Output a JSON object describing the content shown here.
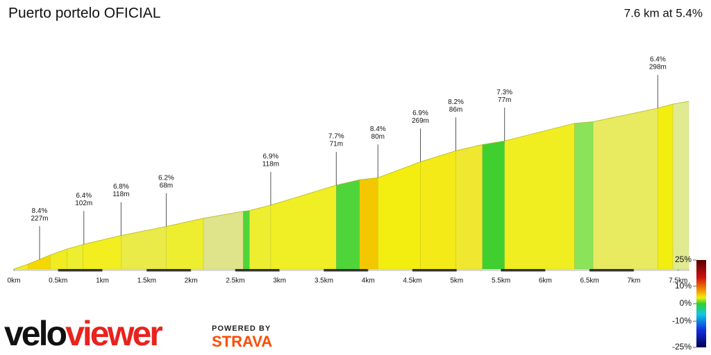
{
  "chart_data": {
    "type": "elevation-profile",
    "title": "Puerto portelo OFICIAL",
    "summary": "7.6 km at 5.4%",
    "x": [
      0,
      0.16,
      0.41,
      0.6,
      0.78,
      1.21,
      1.72,
      2.14,
      2.59,
      2.66,
      2.9,
      3.64,
      3.9,
      4.11,
      4.59,
      4.99,
      5.29,
      5.54,
      6.33,
      6.54,
      7.27,
      7.44,
      7.62
    ],
    "elevation": [
      0,
      12,
      34,
      49,
      60,
      82,
      104,
      124,
      141,
      143,
      156,
      205,
      218,
      223,
      262,
      289,
      304,
      313,
      356,
      360,
      393,
      403,
      410
    ],
    "segment_colors": [
      "#f2ee1e",
      "#f5d800",
      "#f0ec20",
      "#eeee30",
      "#f2ee20",
      "#eaea48",
      "#eeee30",
      "#dfe48a",
      "#4fd53a",
      "#eeee30",
      "#f0ee24",
      "#4fd53a",
      "#f3c800",
      "#f3ee10",
      "#f3ea18",
      "#f0e830",
      "#3fd030",
      "#f0ee20",
      "#8be35a",
      "#e8ea60",
      "#f2ee10",
      "#e0ea90"
    ],
    "xlim": [
      0,
      7.62
    ],
    "ylim": [
      0,
      410
    ],
    "xticks": [
      {
        "value": 0,
        "label": "0km"
      },
      {
        "value": 0.5,
        "label": "0.5km"
      },
      {
        "value": 1,
        "label": "1km"
      },
      {
        "value": 1.5,
        "label": "1.5km"
      },
      {
        "value": 2,
        "label": "2km"
      },
      {
        "value": 2.5,
        "label": "2.5km"
      },
      {
        "value": 3,
        "label": "3km"
      },
      {
        "value": 3.5,
        "label": "3.5km"
      },
      {
        "value": 4,
        "label": "4km"
      },
      {
        "value": 4.5,
        "label": "4.5km"
      },
      {
        "value": 5,
        "label": "5km"
      },
      {
        "value": 5.5,
        "label": "5.5km"
      },
      {
        "value": 6,
        "label": "6km"
      },
      {
        "value": 6.5,
        "label": "6.5km"
      },
      {
        "value": 7,
        "label": "7km"
      },
      {
        "value": 7.5,
        "label": "7.5km"
      }
    ],
    "annotations": [
      {
        "x": 0.29,
        "gradient": "8.4%",
        "length": "227m"
      },
      {
        "x": 0.79,
        "gradient": "6.4%",
        "length": "102m"
      },
      {
        "x": 1.21,
        "gradient": "6.8%",
        "length": "118m"
      },
      {
        "x": 1.72,
        "gradient": "6.2%",
        "length": "68m"
      },
      {
        "x": 2.9,
        "gradient": "6.9%",
        "length": "118m"
      },
      {
        "x": 3.64,
        "gradient": "7.7%",
        "length": "71m"
      },
      {
        "x": 4.11,
        "gradient": "8.4%",
        "length": "80m"
      },
      {
        "x": 4.59,
        "gradient": "6.9%",
        "length": "269m"
      },
      {
        "x": 4.99,
        "gradient": "8.2%",
        "length": "86m"
      },
      {
        "x": 5.54,
        "gradient": "7.3%",
        "length": "77m"
      },
      {
        "x": 7.27,
        "gradient": "6.4%",
        "length": "298m"
      }
    ],
    "colorscale": {
      "lim": [
        -25,
        25
      ],
      "ticks": [
        {
          "value": 25,
          "label": "25%"
        },
        {
          "value": 10,
          "label": "10%"
        },
        {
          "value": 0,
          "label": "0%"
        },
        {
          "value": -10,
          "label": "-10%"
        },
        {
          "value": -25,
          "label": "-25%"
        }
      ]
    }
  },
  "branding": {
    "logo_1": "velo",
    "logo_2": "viewer",
    "powered_by": "POWERED BY",
    "strava": "STRAVA"
  }
}
